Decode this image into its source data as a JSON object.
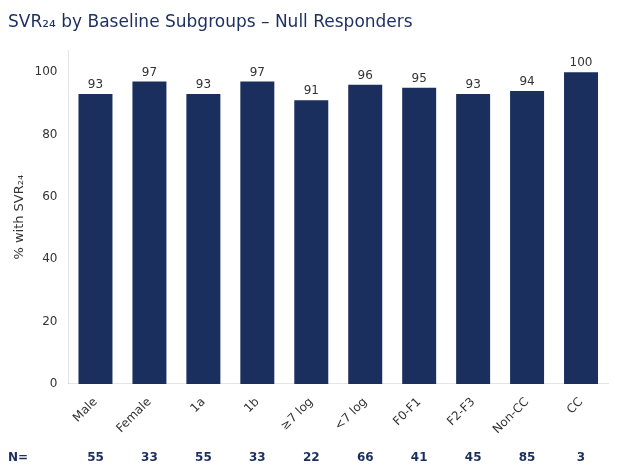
{
  "chart_data": {
    "type": "bar",
    "title": "SVR₂₄ by Baseline Subgroups – Null Responders",
    "y_label": "% with SVR₂₄",
    "categories": [
      "Male",
      "Female",
      "1a",
      "1b",
      "≥7 log",
      "<7 log",
      "F0-F1",
      "F2-F3",
      "Non-CC",
      "CC"
    ],
    "values": [
      93,
      97,
      93,
      97,
      91,
      96,
      95,
      93,
      94,
      100
    ],
    "n": [
      55,
      33,
      55,
      33,
      22,
      66,
      41,
      45,
      85,
      3
    ],
    "n_prefix": "N=",
    "color": "#1b2f5e",
    "ylim": [
      0,
      107
    ],
    "yticks": [
      0,
      20,
      40,
      60,
      80,
      100
    ],
    "grid": false,
    "data_labels": true
  }
}
